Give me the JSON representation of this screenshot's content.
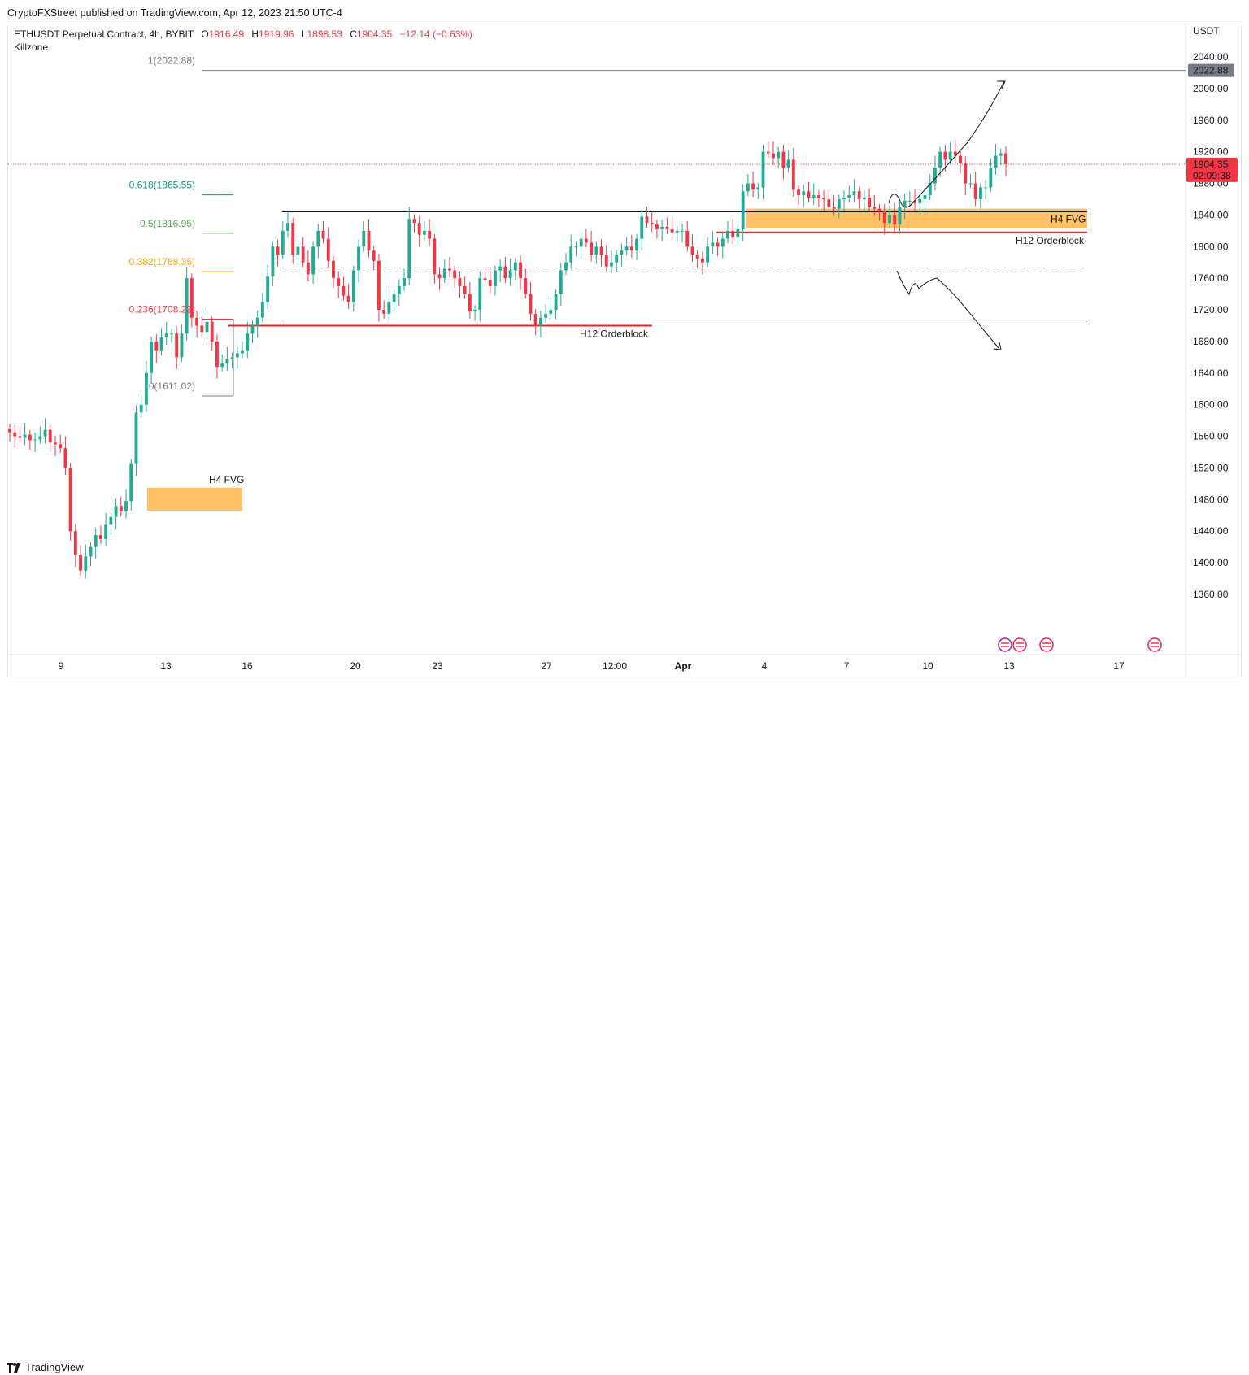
{
  "publisher": "CryptoFXStreet published on TradingView.com, Apr 12, 2023 21:50 UTC-4",
  "legend": {
    "symbol": "ETHUSDT Perpetual Contract, 4h, BYBIT",
    "open_label": "O",
    "open": "1916.49",
    "high_label": "H",
    "high": "1919.96",
    "low_label": "L",
    "low": "1898.53",
    "close_label": "C",
    "close": "1904.35",
    "change": "−12.14 (−0.63%)"
  },
  "indicator": "Killzone",
  "brand": "TradingView",
  "colors": {
    "up": "#22ab94",
    "down": "#f23645",
    "fvg": "#ffb74d",
    "orderblock": "#d32f2f"
  },
  "chart_data": {
    "type": "candlestick",
    "y_unit": "USDT",
    "ylim": [
      1325,
      2072
    ],
    "y_ticks": [
      "2040.00",
      "2000.00",
      "1960.00",
      "1920.00",
      "1880.00",
      "1840.00",
      "1800.00",
      "1760.00",
      "1720.00",
      "1680.00",
      "1640.00",
      "1600.00",
      "1560.00",
      "1520.00",
      "1480.00",
      "1440.00",
      "1400.00",
      "1360.00"
    ],
    "x_ticks": [
      "9",
      "13",
      "16",
      "20",
      "23",
      "27",
      "12:00",
      "Apr",
      "4",
      "7",
      "10",
      "13",
      "17"
    ],
    "last_price": "1904.35",
    "countdown": "02:09:38",
    "top_price_label": "2022.88",
    "fib_levels": [
      {
        "label": "1(2022.88)",
        "value": 2022.88,
        "color": "#787b86"
      },
      {
        "label": "0.618(1865.55)",
        "value": 1865.55,
        "color": "#089981"
      },
      {
        "label": "0.5(1816.95)",
        "value": 1816.95,
        "color": "#4caf50"
      },
      {
        "label": "0.382(1768.35)",
        "value": 1768.35,
        "color": "#f7a600"
      },
      {
        "label": "0.236(1708.22)",
        "value": 1708.22,
        "color": "#f23645"
      },
      {
        "label": "0(1611.02)",
        "value": 1611.02,
        "color": "#787b86"
      }
    ],
    "zones": [
      {
        "label": "H4 FVG",
        "low": 1466,
        "high": 1495
      },
      {
        "label": "H4 FVG",
        "low": 1823,
        "high": 1848
      }
    ],
    "orderblocks": [
      {
        "label": "H12 Orderblock",
        "value": 1700
      },
      {
        "label": "H12 Orderblock",
        "value": 1818
      }
    ],
    "range_high": 1844,
    "range_low": 1702,
    "range_mid": 1773,
    "closes": [
      1565,
      1560,
      1558,
      1562,
      1555,
      1556,
      1560,
      1568,
      1552,
      1550,
      1545,
      1520,
      1440,
      1410,
      1390,
      1408,
      1420,
      1435,
      1430,
      1448,
      1458,
      1472,
      1465,
      1478,
      1525,
      1590,
      1600,
      1640,
      1680,
      1668,
      1685,
      1690,
      1690,
      1660,
      1690,
      1760,
      1710,
      1700,
      1692,
      1705,
      1680,
      1648,
      1652,
      1658,
      1660,
      1665,
      1668,
      1690,
      1700,
      1710,
      1730,
      1762,
      1800,
      1790,
      1820,
      1830,
      1790,
      1800,
      1780,
      1765,
      1800,
      1820,
      1810,
      1782,
      1760,
      1750,
      1738,
      1730,
      1770,
      1800,
      1820,
      1795,
      1782,
      1720,
      1715,
      1730,
      1740,
      1750,
      1760,
      1835,
      1830,
      1815,
      1820,
      1810,
      1765,
      1760,
      1772,
      1770,
      1760,
      1750,
      1740,
      1718,
      1720,
      1760,
      1758,
      1750,
      1770,
      1775,
      1760,
      1770,
      1780,
      1760,
      1740,
      1715,
      1700,
      1710,
      1715,
      1720,
      1740,
      1770,
      1780,
      1800,
      1800,
      1810,
      1805,
      1790,
      1800,
      1790,
      1775,
      1780,
      1790,
      1795,
      1800,
      1795,
      1810,
      1838,
      1830,
      1828,
      1822,
      1825,
      1822,
      1818,
      1820,
      1820,
      1800,
      1790,
      1785,
      1780,
      1800,
      1805,
      1800,
      1810,
      1820,
      1812,
      1822,
      1870,
      1880,
      1872,
      1875,
      1920,
      1918,
      1912,
      1920,
      1900,
      1910,
      1872,
      1865,
      1870,
      1862,
      1865,
      1862,
      1860,
      1850,
      1848,
      1860,
      1862,
      1865,
      1870,
      1860,
      1862,
      1850,
      1848,
      1845,
      1830,
      1840,
      1828,
      1850,
      1858,
      1858,
      1855,
      1860,
      1865,
      1880,
      1900,
      1920,
      1910,
      1920,
      1915,
      1905,
      1880,
      1880,
      1860,
      1875,
      1875,
      1900,
      1915,
      1918,
      1904.35
    ]
  }
}
